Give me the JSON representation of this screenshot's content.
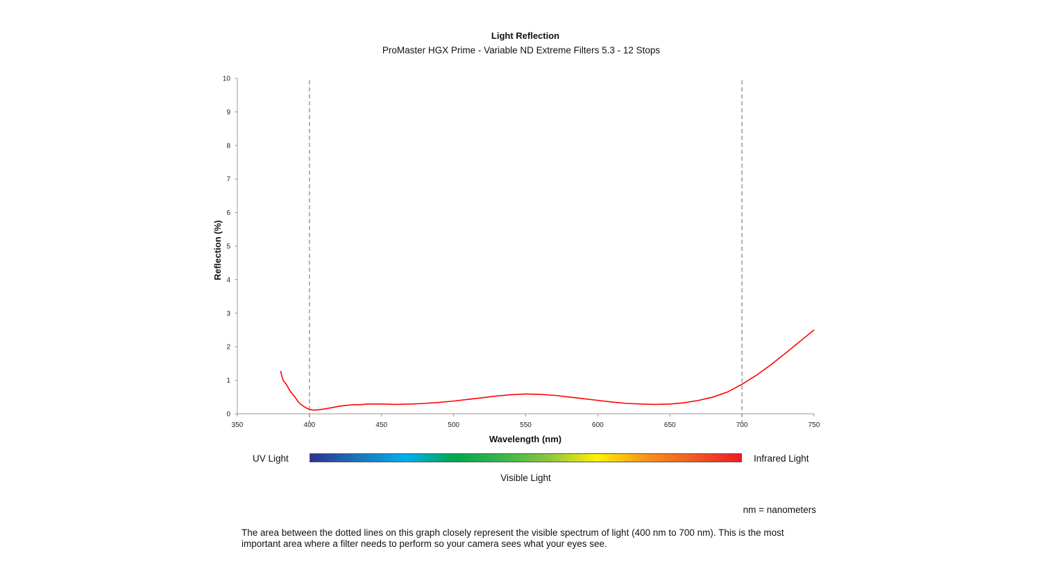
{
  "header": {
    "title": "Light Reflection",
    "subtitle": "ProMaster HGX Prime - Variable ND Extreme Filters 5.3 - 12 Stops"
  },
  "chart_data": {
    "type": "line",
    "title": "Light Reflection",
    "subtitle": "ProMaster HGX Prime - Variable ND Extreme Filters 5.3 - 12 Stops",
    "xlabel": "Wavelength (nm)",
    "ylabel": "Reflection (%)",
    "xlim": [
      350,
      750
    ],
    "ylim": [
      0,
      10
    ],
    "x_ticks": [
      350,
      400,
      450,
      500,
      550,
      600,
      650,
      700,
      750
    ],
    "y_ticks": [
      0,
      1,
      2,
      3,
      4,
      5,
      6,
      7,
      8,
      9,
      10
    ],
    "grid": false,
    "line_color": "#ff0000",
    "reference_lines": [
      {
        "x": 400,
        "style": "dashed",
        "color": "#9a9a9a"
      },
      {
        "x": 700,
        "style": "dashed",
        "color": "#9a9a9a"
      }
    ],
    "series": [
      {
        "x": [
          380,
          381,
          382,
          384,
          386,
          388,
          390,
          392,
          394,
          396,
          398,
          400,
          403,
          406,
          410,
          415,
          420,
          425,
          430,
          435,
          440,
          445,
          450,
          460,
          470,
          480,
          490,
          500,
          510,
          520,
          530,
          540,
          550,
          560,
          570,
          580,
          590,
          600,
          610,
          620,
          630,
          640,
          650,
          660,
          670,
          680,
          690,
          700,
          710,
          720,
          730,
          740,
          750
        ],
        "y": [
          1.28,
          1.1,
          0.98,
          0.88,
          0.72,
          0.6,
          0.5,
          0.37,
          0.28,
          0.22,
          0.17,
          0.13,
          0.11,
          0.12,
          0.14,
          0.18,
          0.22,
          0.25,
          0.27,
          0.27,
          0.29,
          0.29,
          0.29,
          0.28,
          0.29,
          0.31,
          0.34,
          0.38,
          0.43,
          0.48,
          0.53,
          0.57,
          0.59,
          0.58,
          0.55,
          0.5,
          0.45,
          0.4,
          0.35,
          0.31,
          0.29,
          0.28,
          0.29,
          0.33,
          0.4,
          0.5,
          0.65,
          0.88,
          1.15,
          1.46,
          1.8,
          2.15,
          2.5
        ]
      }
    ]
  },
  "spectrum": {
    "uv_label": "UV Light",
    "infrared_label": "Infrared Light",
    "visible_label": "Visible Light",
    "colors": [
      "#2e3192",
      "#1b75bb",
      "#00aeef",
      "#00a651",
      "#39b54a",
      "#8dc63f",
      "#fff200",
      "#f7941d",
      "#f15a24",
      "#ed1c24"
    ]
  },
  "notes": {
    "units": "nm = nanometers",
    "explanation": "The area between the dotted lines on this graph closely represent the visible spectrum of light (400 nm to 700 nm). This is the most important area where a filter needs to perform so your camera sees what your eyes see."
  }
}
